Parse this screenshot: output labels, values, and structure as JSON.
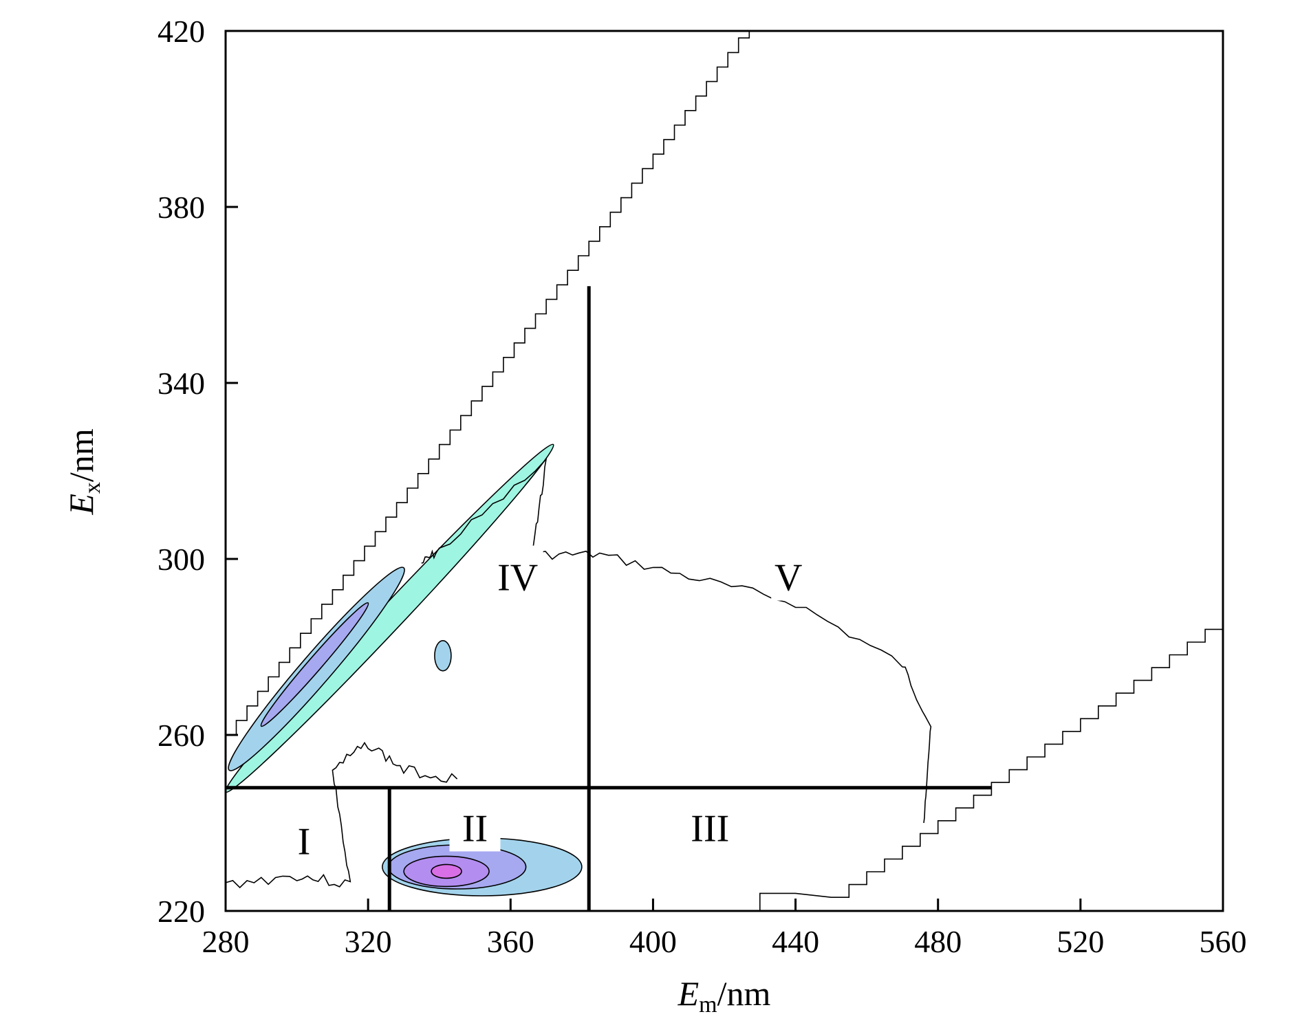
{
  "chart_data": {
    "type": "heatmap",
    "title": "",
    "xlabel": {
      "main": "E",
      "sub": "m",
      "suffix": "/nm"
    },
    "ylabel": {
      "main": "E",
      "sub": "x",
      "suffix": "/nm"
    },
    "xlim": [
      280,
      560
    ],
    "ylim": [
      220,
      420
    ],
    "x_ticks": [
      280,
      320,
      360,
      400,
      440,
      480,
      520,
      560
    ],
    "y_ticks": [
      220,
      260,
      300,
      340,
      380,
      420
    ],
    "grid": false,
    "colors": {
      "base": "#9ef5e1",
      "level1": "#a3d3ec",
      "level2": "#a6a8f0",
      "level3": "#b38df0",
      "peak": "#d86fe6"
    },
    "region_dividers": {
      "horizontal_ex": 248,
      "vertical_em_lower": 326,
      "vertical_em_upper": 382,
      "vertical_upper_top_ex": 362,
      "horizontal_end_em": 495
    },
    "regions": [
      {
        "label": "I",
        "em": 302,
        "ex": 236
      },
      {
        "label": "II",
        "em": 350,
        "ex": 239
      },
      {
        "label": "III",
        "em": 416,
        "ex": 239
      },
      {
        "label": "IV",
        "em": 362,
        "ex": 296
      },
      {
        "label": "V",
        "em": 438,
        "ex": 296
      }
    ],
    "peaks": [
      {
        "region": "II",
        "em": 342,
        "ex": 229,
        "level": "peak"
      },
      {
        "region": "IV",
        "em": 305,
        "ex": 275,
        "level": "level2"
      }
    ]
  }
}
